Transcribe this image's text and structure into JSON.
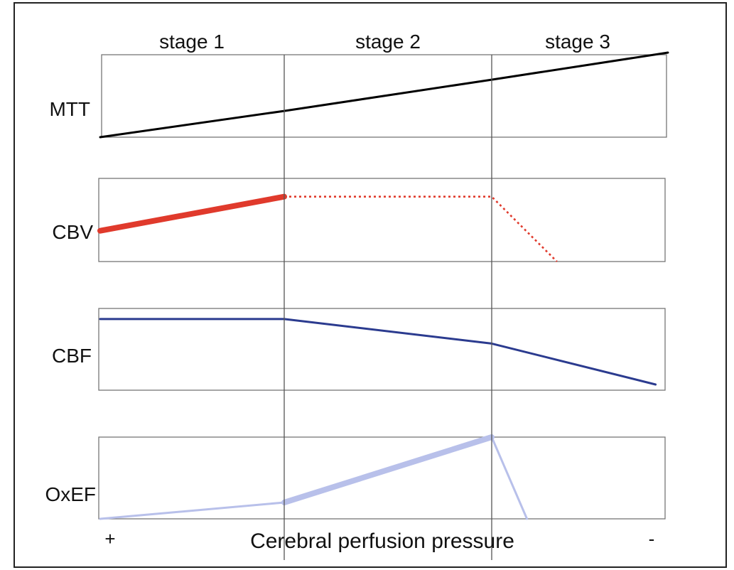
{
  "chart_data": {
    "type": "line",
    "stages": [
      "stage 1",
      "stage 2",
      "stage 3"
    ],
    "xlabel": "Cerebral perfusion pressure",
    "x_direction_labels": {
      "left": "+",
      "right": "-"
    },
    "x_domain": [
      0,
      3
    ],
    "panels": [
      {
        "name": "MTT",
        "color": "#000000",
        "style": "solid",
        "points": [
          [
            0,
            0.0
          ],
          [
            1,
            0.31
          ],
          [
            2,
            0.68
          ],
          [
            3,
            1.0
          ]
        ]
      },
      {
        "name": "CBV",
        "color": "#e03a2c",
        "segments": [
          {
            "style": "solid-thick",
            "points": [
              [
                0,
                0.37
              ],
              [
                1,
                0.78
              ]
            ]
          },
          {
            "style": "dotted",
            "points": [
              [
                1,
                0.78
              ],
              [
                2,
                0.78
              ],
              [
                2.37,
                0.0
              ]
            ]
          }
        ]
      },
      {
        "name": "CBF",
        "color": "#2b3b8f",
        "style": "solid",
        "points": [
          [
            0,
            0.87
          ],
          [
            1,
            0.87
          ],
          [
            2,
            0.57
          ],
          [
            2.93,
            0.07
          ]
        ]
      },
      {
        "name": "OxEF",
        "color": "#b8c0ea",
        "segments": [
          {
            "style": "solid",
            "points": [
              [
                0,
                0.0
              ],
              [
                1,
                0.2
              ]
            ]
          },
          {
            "style": "solid-thick",
            "points": [
              [
                1,
                0.2
              ],
              [
                2,
                1.0
              ]
            ]
          },
          {
            "style": "solid",
            "points": [
              [
                2,
                1.0
              ],
              [
                2.2,
                0.0
              ]
            ]
          }
        ]
      }
    ]
  }
}
